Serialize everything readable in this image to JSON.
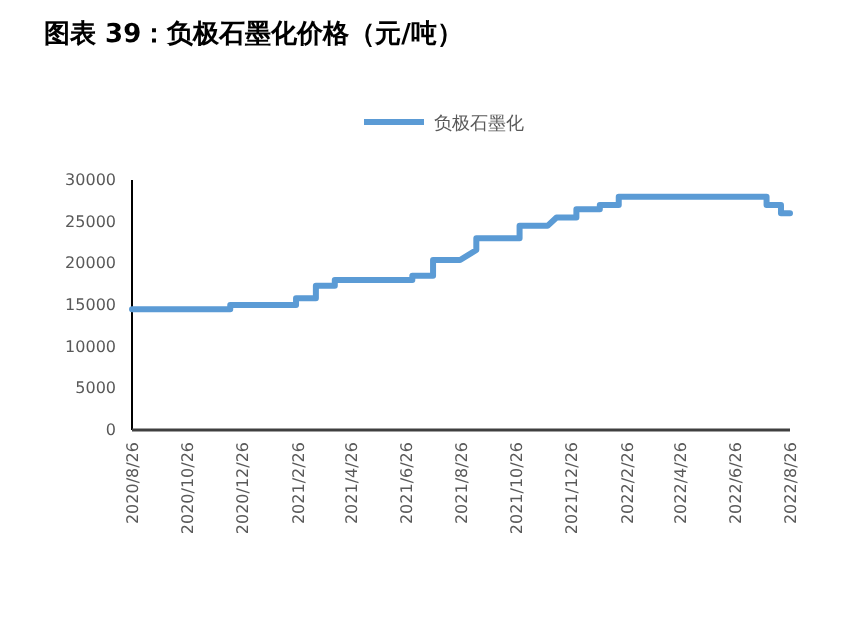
{
  "chart_data": {
    "type": "line",
    "title": "图表 39：负极石墨化价格（元/吨）",
    "legend": "top",
    "series": [
      {
        "name": "负极石墨化",
        "color": "#5b9bd5",
        "x": [
          "2020-08-26",
          "2020-12-13",
          "2020-12-13",
          "2021-02-24",
          "2021-02-24",
          "2021-03-18",
          "2021-03-18",
          "2021-04-08",
          "2021-04-08",
          "2021-07-03",
          "2021-07-03",
          "2021-07-26",
          "2021-07-26",
          "2021-08-25",
          "2021-09-12",
          "2021-09-12",
          "2021-10-30",
          "2021-10-30",
          "2021-11-30",
          "2021-12-10",
          "2022-01-01",
          "2022-01-01",
          "2022-01-27",
          "2022-01-27",
          "2022-02-17",
          "2022-02-17",
          "2022-07-31",
          "2022-07-31",
          "2022-08-16",
          "2022-08-16",
          "2022-08-26"
        ],
        "values": [
          14500,
          14500,
          15000,
          15000,
          15800,
          15800,
          17300,
          17300,
          18000,
          18000,
          18500,
          18500,
          20400,
          20400,
          21600,
          23000,
          23000,
          24500,
          24500,
          25500,
          25500,
          26500,
          26500,
          27000,
          27000,
          28000,
          28000,
          27000,
          27000,
          26000,
          26000
        ]
      }
    ],
    "xlim": [
      "2020-08-26",
      "2022-08-26"
    ],
    "xticks": [
      {
        "value": "2020-08-26",
        "label": "2020/8/26"
      },
      {
        "value": "2020-10-26",
        "label": "2020/10/26"
      },
      {
        "value": "2020-12-26",
        "label": "2020/12/26"
      },
      {
        "value": "2021-02-26",
        "label": "2021/2/26"
      },
      {
        "value": "2021-04-26",
        "label": "2021/4/26"
      },
      {
        "value": "2021-06-26",
        "label": "2021/6/26"
      },
      {
        "value": "2021-08-26",
        "label": "2021/8/26"
      },
      {
        "value": "2021-10-26",
        "label": "2021/10/26"
      },
      {
        "value": "2021-12-26",
        "label": "2021/12/26"
      },
      {
        "value": "2022-02-26",
        "label": "2022/2/26"
      },
      {
        "value": "2022-04-26",
        "label": "2022/4/26"
      },
      {
        "value": "2022-06-26",
        "label": "2022/6/26"
      },
      {
        "value": "2022-08-26",
        "label": "2022/8/26"
      }
    ],
    "ylim": [
      0,
      30000
    ],
    "yticks": [
      0,
      5000,
      10000,
      15000,
      20000,
      25000,
      30000
    ]
  }
}
